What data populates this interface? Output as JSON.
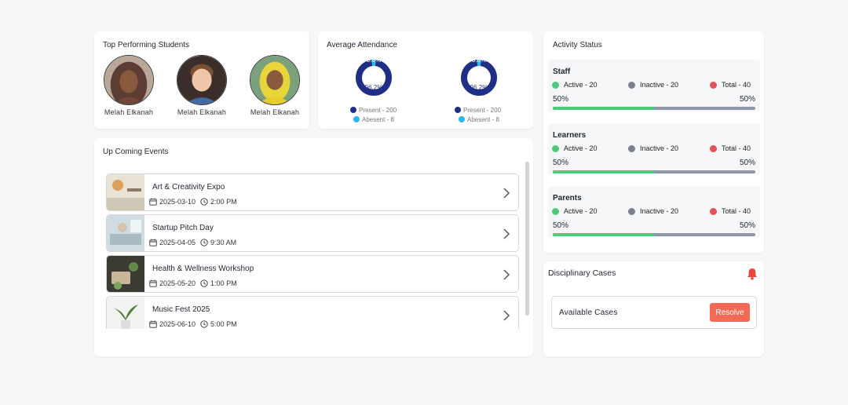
{
  "top_students": {
    "title": "Top Performing Students",
    "students": [
      {
        "name": "Melah Elkanah"
      },
      {
        "name": "Melah Elkanah"
      },
      {
        "name": "Melah Elkanah"
      }
    ]
  },
  "attendance": {
    "title": "Average Attendance",
    "charts": [
      {
        "pct_top": "3.8%",
        "pct_bottom": "96.2%",
        "present_label": "Present - 200",
        "absent_label": "Abesent - 8",
        "present_fraction": 0.962
      },
      {
        "pct_top": "3.8%",
        "pct_bottom": "96.2%",
        "present_label": "Present - 200",
        "absent_label": "Abesent - 8",
        "present_fraction": 0.962
      }
    ],
    "colors": {
      "present": "#1f2f86",
      "absent": "#2ab8ec"
    }
  },
  "events": {
    "title": "Up Coming Events",
    "items": [
      {
        "title": "Art & Creativity Expo",
        "date": "2025-03-10",
        "time": "2:00 PM"
      },
      {
        "title": "Startup Pitch Day",
        "date": "2025-04-05",
        "time": "9:30 AM"
      },
      {
        "title": "Health & Wellness Workshop",
        "date": "2025-05-20",
        "time": "1:00 PM"
      },
      {
        "title": "Music Fest 2025",
        "date": "2025-06-10",
        "time": "5:00 PM"
      }
    ]
  },
  "activity": {
    "title": "Activity Status",
    "groups": [
      {
        "name": "Staff",
        "active": "Active - 20",
        "inactive": "Inactive - 20",
        "total": "Total - 40",
        "left_pct": "50%",
        "right_pct": "50%",
        "fill": 0.5
      },
      {
        "name": "Learners",
        "active": "Active - 20",
        "inactive": "Inactive - 20",
        "total": "Total - 40",
        "left_pct": "50%",
        "right_pct": "50%",
        "fill": 0.5
      },
      {
        "name": "Parents",
        "active": "Active - 20",
        "inactive": "Inactive - 20",
        "total": "Total - 40",
        "left_pct": "50%",
        "right_pct": "50%",
        "fill": 0.5
      }
    ],
    "colors": {
      "active": "#4ccc7a",
      "inactive": "#7b8190",
      "total": "#e0545a"
    }
  },
  "discipline": {
    "title": "Disciplinary Cases",
    "cases_label": "Available Cases",
    "resolve_label": "Resolve"
  }
}
